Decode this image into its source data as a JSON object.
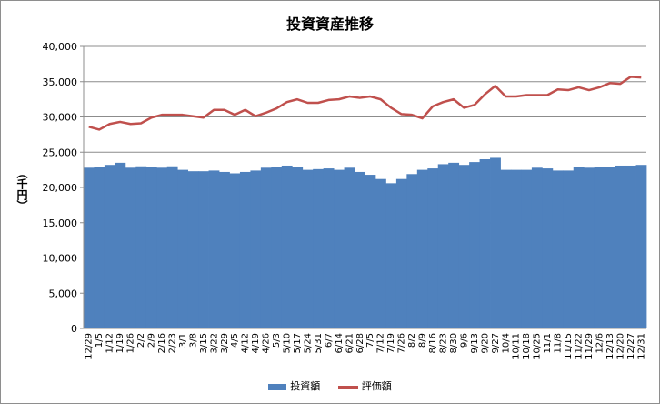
{
  "chart_data": {
    "type": "bar",
    "title": "投資資産推移",
    "ylabel": "（千円）",
    "xlabel": "",
    "ylim": [
      0,
      40000
    ],
    "yticks": [
      0,
      5000,
      10000,
      15000,
      20000,
      25000,
      30000,
      35000,
      40000
    ],
    "ytick_labels": [
      "0",
      "5,000",
      "10,000",
      "15,000",
      "20,000",
      "25,000",
      "30,000",
      "35,000",
      "40,000"
    ],
    "grid": true,
    "legend_position": "bottom",
    "categories": [
      "12/29",
      "1/5",
      "1/12",
      "1/19",
      "1/26",
      "2/2",
      "2/9",
      "2/16",
      "2/23",
      "3/1",
      "3/8",
      "3/15",
      "3/22",
      "3/29",
      "4/5",
      "4/12",
      "4/19",
      "4/26",
      "5/3",
      "5/10",
      "5/17",
      "5/24",
      "5/31",
      "6/7",
      "6/14",
      "6/21",
      "6/28",
      "7/5",
      "7/12",
      "7/19",
      "7/26",
      "8/2",
      "8/9",
      "8/16",
      "8/23",
      "8/30",
      "9/6",
      "9/13",
      "9/20",
      "9/27",
      "10/4",
      "10/11",
      "10/18",
      "10/25",
      "11/1",
      "11/8",
      "11/15",
      "11/22",
      "11/29",
      "12/6",
      "12/13",
      "12/20",
      "12/27",
      "12/31"
    ],
    "xtick_labels": [
      "12/29",
      "1/5",
      "1/12",
      "1/19",
      "1/26",
      "2/2",
      "2/9",
      "2/16",
      "2/23",
      "3/1",
      "3/8",
      "3/15",
      "3/22",
      "3/29",
      "4/5",
      "4/12",
      "4/19",
      "4/26",
      "5/3",
      "5/10",
      "5/17",
      "5/24",
      "5/31",
      "6/7",
      "6/14",
      "6/21",
      "6/28",
      "7/5",
      "7/12",
      "7/19",
      "7/26",
      "8/2",
      "8/9",
      "8/16",
      "8/23",
      "8/30",
      "9/6",
      "9/13",
      "9/20",
      "9/27",
      "10/4",
      "10/11",
      "10/18",
      "10/25",
      "11/1",
      "11/8",
      "11/15",
      "11/22",
      "11/29",
      "12/6",
      "12/13",
      "12/20",
      "12/27",
      "12/31"
    ],
    "series": [
      {
        "name": "投資額",
        "kind": "bar",
        "color": "#4f81bd",
        "values": [
          22800,
          22900,
          23200,
          23500,
          22800,
          23000,
          22900,
          22800,
          23000,
          22500,
          22300,
          22300,
          22400,
          22200,
          22000,
          22200,
          22400,
          22800,
          22900,
          23100,
          22900,
          22500,
          22600,
          22700,
          22500,
          22800,
          22200,
          21800,
          21200,
          20600,
          21200,
          21900,
          22500,
          22700,
          23300,
          23500,
          23200,
          23600,
          24000,
          24200,
          22500,
          22500,
          22500,
          22800,
          22700,
          22400,
          22400,
          22900,
          22800,
          22900,
          22900,
          23100,
          23100,
          23200
        ]
      },
      {
        "name": "評価額",
        "kind": "line",
        "color": "#c0504d",
        "values": [
          28600,
          28200,
          29000,
          29300,
          29000,
          29100,
          29900,
          30300,
          30300,
          30300,
          30100,
          29900,
          31000,
          31000,
          30300,
          31000,
          30100,
          30600,
          31200,
          32100,
          32500,
          32000,
          32000,
          32400,
          32500,
          32900,
          32700,
          32900,
          32500,
          31300,
          30400,
          30300,
          29800,
          31500,
          32100,
          32500,
          31300,
          31700,
          33200,
          34400,
          32900,
          32900,
          33100,
          33100,
          33100,
          33900,
          33800,
          34200,
          33800,
          34200,
          34800,
          34700,
          35700,
          35600
        ]
      }
    ]
  }
}
